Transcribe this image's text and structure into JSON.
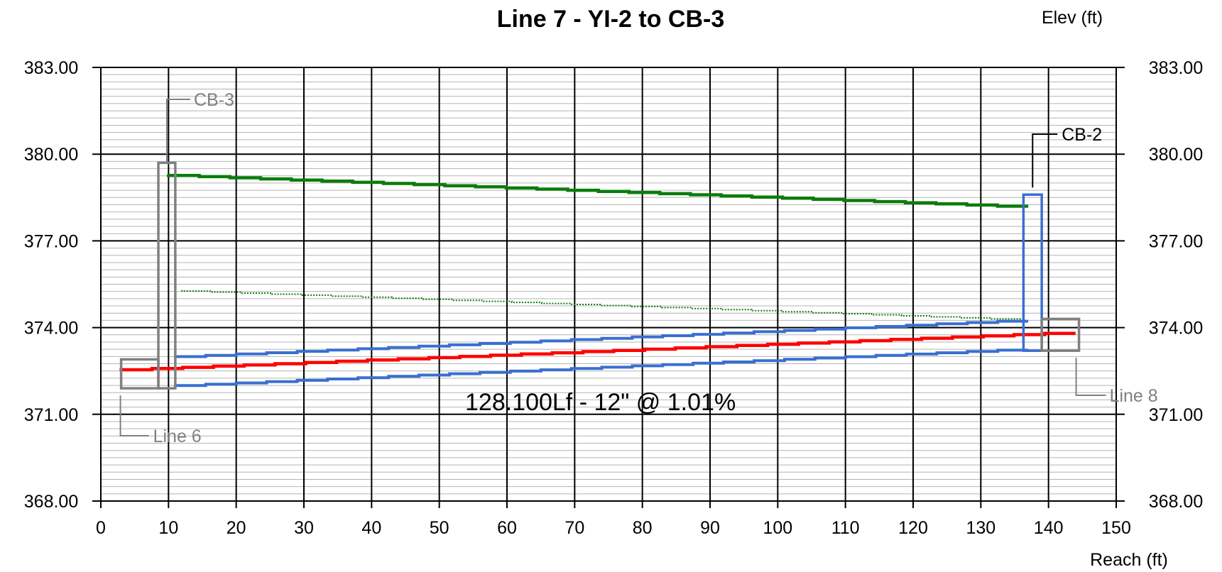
{
  "chart_data": {
    "type": "line",
    "title": "Line 7 - YI-2 to CB-3",
    "xlabel": "Reach (ft)",
    "ylabel": "Elev (ft)",
    "xlim": [
      0,
      150
    ],
    "ylim": [
      368,
      383
    ],
    "x_ticks": [
      "0",
      "10",
      "20",
      "30",
      "40",
      "50",
      "60",
      "70",
      "80",
      "90",
      "100",
      "110",
      "120",
      "130",
      "140",
      "150"
    ],
    "y_ticks": [
      "368.00",
      "371.00",
      "374.00",
      "377.00",
      "380.00",
      "383.00"
    ],
    "y_tick_values": [
      368,
      371,
      374,
      377,
      380,
      383
    ],
    "grid": true,
    "series": [
      {
        "key": "ground",
        "color": "#0a7d0a",
        "style": "solid",
        "x": [
          10,
          137
        ],
        "y": [
          379.3,
          378.2
        ]
      },
      {
        "key": "hgl",
        "color": "#ff0000",
        "style": "solid",
        "x": [
          3,
          144
        ],
        "y": [
          372.5,
          373.8
        ]
      },
      {
        "key": "egl",
        "color": "#0a7d0a",
        "style": "dotted",
        "x": [
          12,
          136
        ],
        "y": [
          375.3,
          374.3
        ]
      },
      {
        "key": "pipe_crown",
        "color": "#3a6fd0",
        "style": "solid",
        "x": [
          11,
          137
        ],
        "y": [
          372.95,
          374.22
        ]
      },
      {
        "key": "pipe_invert",
        "color": "#3a6fd0",
        "style": "solid",
        "x": [
          11,
          137
        ],
        "y": [
          371.95,
          373.22
        ]
      }
    ],
    "structures": [
      {
        "label": "CB-3",
        "x0": 8.5,
        "x1": 11.0,
        "bottom": 371.9,
        "top": 379.7,
        "color": "#808080"
      },
      {
        "label": "CB-2",
        "x0": 136.3,
        "x1": 139.0,
        "bottom": 373.2,
        "top": 378.6,
        "color": "#3a6fd0"
      },
      {
        "label": "Line 6",
        "x0": 3.0,
        "x1": 8.5,
        "bottom": 371.9,
        "top": 372.9,
        "color": "#808080"
      },
      {
        "label": "Line 8",
        "x0": 139.0,
        "x1": 144.5,
        "bottom": 373.2,
        "top": 374.3,
        "color": "#808080"
      }
    ],
    "annotations": [
      {
        "text": "CB-3",
        "color": "#808080"
      },
      {
        "text": "CB-2",
        "color": "#000000"
      },
      {
        "text": "Line 6",
        "color": "#808080"
      },
      {
        "text": "Line 8",
        "color": "#808080"
      },
      {
        "text": "128.100Lf - 12\" @ 1.01%",
        "color": "#000000"
      }
    ]
  }
}
